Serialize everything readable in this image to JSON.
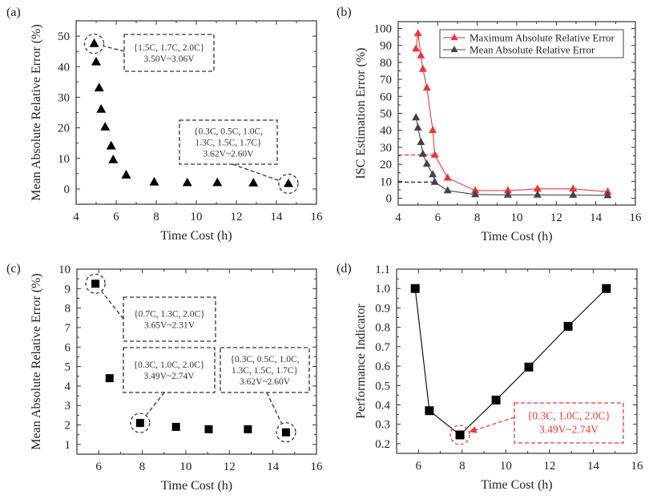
{
  "chart_data": [
    {
      "id": "a",
      "panel_label": "(a)",
      "type": "scatter",
      "xlabel": "Time Cost (h)",
      "ylabel": "Mean Absolute Relative Error (%)",
      "xlim": [
        4,
        16
      ],
      "ylim": [
        -5,
        55
      ],
      "xticks": [
        4,
        6,
        8,
        10,
        12,
        14,
        16
      ],
      "yticks": [
        0,
        10,
        20,
        30,
        40,
        50
      ],
      "grid": false,
      "series": [
        {
          "name": "Mean Absolute Relative Error",
          "marker": "triangle",
          "color": "#000000",
          "line": false,
          "x": [
            4.9,
            5.0,
            5.15,
            5.25,
            5.45,
            5.75,
            5.85,
            6.5,
            7.9,
            9.55,
            11.05,
            12.85,
            14.6
          ],
          "y": [
            47.5,
            41.5,
            33,
            26,
            20.2,
            14,
            9.5,
            4.5,
            2.2,
            2.0,
            2.0,
            1.9,
            1.7
          ]
        }
      ],
      "annotations": [
        {
          "lines": [
            "{1.5C, 1.7C, 2.0C}",
            "3.50V~3.06V"
          ],
          "target": [
            4.9,
            47.5
          ],
          "color": "#333333"
        },
        {
          "lines": [
            "{0.3C, 0.5C, 1.0C,",
            "1.3C, 1.5C, 1.7C}",
            "3.62V~2.60V"
          ],
          "target": [
            14.6,
            1.7
          ],
          "color": "#333333"
        }
      ]
    },
    {
      "id": "b",
      "panel_label": "(b)",
      "type": "line",
      "xlabel": "Time Cost (h)",
      "ylabel": "ISC Estimation Error (%)",
      "xlim": [
        4,
        16
      ],
      "ylim": [
        -4,
        104
      ],
      "xticks": [
        4,
        6,
        8,
        10,
        12,
        14,
        16
      ],
      "yticks": [
        0,
        10,
        20,
        30,
        40,
        50,
        60,
        70,
        80,
        90,
        100
      ],
      "grid": false,
      "legend_position": "top-right",
      "series": [
        {
          "name": "Maximum Absolute Relative Error",
          "marker": "triangle",
          "color": "#e8383d",
          "line": true,
          "x": [
            4.9,
            5.0,
            5.15,
            5.25,
            5.45,
            5.75,
            5.85,
            6.5,
            7.9,
            9.55,
            11.05,
            12.85,
            14.6
          ],
          "y": [
            88,
            97,
            84,
            76,
            65,
            40,
            25.5,
            12,
            4.5,
            4.5,
            5.5,
            5.5,
            3.8
          ]
        },
        {
          "name": "Mean Absolute Relative Error",
          "marker": "triangle",
          "color": "#444444",
          "line": true,
          "x": [
            4.9,
            5.0,
            5.15,
            5.25,
            5.45,
            5.75,
            5.85,
            6.5,
            7.9,
            9.55,
            11.05,
            12.85,
            14.6
          ],
          "y": [
            47.5,
            41.5,
            33,
            26,
            20.2,
            14,
            9.5,
            4.5,
            2.2,
            2.0,
            2.0,
            1.9,
            1.7
          ]
        }
      ],
      "reference_lines": [
        {
          "y": 25.5,
          "x_to": 5.85,
          "color": "#e8383d"
        },
        {
          "y": 9.5,
          "x_to": 5.85,
          "color": "#222222"
        }
      ]
    },
    {
      "id": "c",
      "panel_label": "(c)",
      "type": "scatter",
      "xlabel": "Time Cost (h)",
      "ylabel": "Mean Absolute Relative Error (%)",
      "xlim": [
        5,
        16
      ],
      "ylim": [
        0.5,
        10
      ],
      "xticks": [
        6,
        8,
        10,
        12,
        14,
        16
      ],
      "yticks": [
        1,
        2,
        3,
        4,
        5,
        6,
        7,
        8,
        9,
        10
      ],
      "grid": false,
      "series": [
        {
          "name": "Mean Absolute Relative Error",
          "marker": "square",
          "color": "#000000",
          "line": false,
          "x": [
            5.85,
            6.5,
            7.9,
            9.55,
            11.05,
            12.85,
            14.6
          ],
          "y": [
            9.25,
            4.4,
            2.1,
            1.9,
            1.78,
            1.78,
            1.62
          ]
        }
      ],
      "annotations": [
        {
          "lines": [
            "{0.7C, 1.3C, 2.0C}",
            "3.65V~2.31V"
          ],
          "target": [
            5.85,
            9.25
          ],
          "color": "#333333"
        },
        {
          "lines": [
            "{0.3C, 1.0C, 2.0C}",
            "3.49V~2.74V"
          ],
          "target": [
            7.9,
            2.1
          ],
          "color": "#333333"
        },
        {
          "lines": [
            "{0.3C, 0.5C, 1.0C,",
            "1.3C, 1.5C, 1.7C}",
            "3.62V~2.60V"
          ],
          "target": [
            14.6,
            1.62
          ],
          "color": "#333333"
        }
      ]
    },
    {
      "id": "d",
      "panel_label": "(d)",
      "type": "line",
      "xlabel": "Time Cost (h)",
      "ylabel": "Performance Indicator",
      "xlim": [
        5,
        16
      ],
      "ylim": [
        0.15,
        1.1
      ],
      "xticks": [
        6,
        8,
        10,
        12,
        14,
        16
      ],
      "yticks": [
        0.2,
        0.3,
        0.4,
        0.5,
        0.6,
        0.7,
        0.8,
        0.9,
        1.0,
        1.1
      ],
      "ytick_labels": [
        "0.2",
        "0.3",
        "0.4",
        "0.5",
        "0.6",
        "0.7",
        "0.8",
        "0.9",
        "1.0",
        "1.1"
      ],
      "grid": false,
      "series": [
        {
          "name": "Performance Indicator",
          "marker": "square",
          "color": "#000000",
          "line": true,
          "x": [
            5.85,
            6.5,
            7.9,
            9.55,
            11.05,
            12.85,
            14.6
          ],
          "y": [
            1.0,
            0.37,
            0.245,
            0.425,
            0.595,
            0.805,
            1.0
          ]
        }
      ],
      "annotations": [
        {
          "lines": [
            "{0.3C, 1.0C, 2.0C}",
            "3.49V~2.74V"
          ],
          "target": [
            7.9,
            0.245
          ],
          "color": "#e8383d"
        }
      ]
    }
  ]
}
